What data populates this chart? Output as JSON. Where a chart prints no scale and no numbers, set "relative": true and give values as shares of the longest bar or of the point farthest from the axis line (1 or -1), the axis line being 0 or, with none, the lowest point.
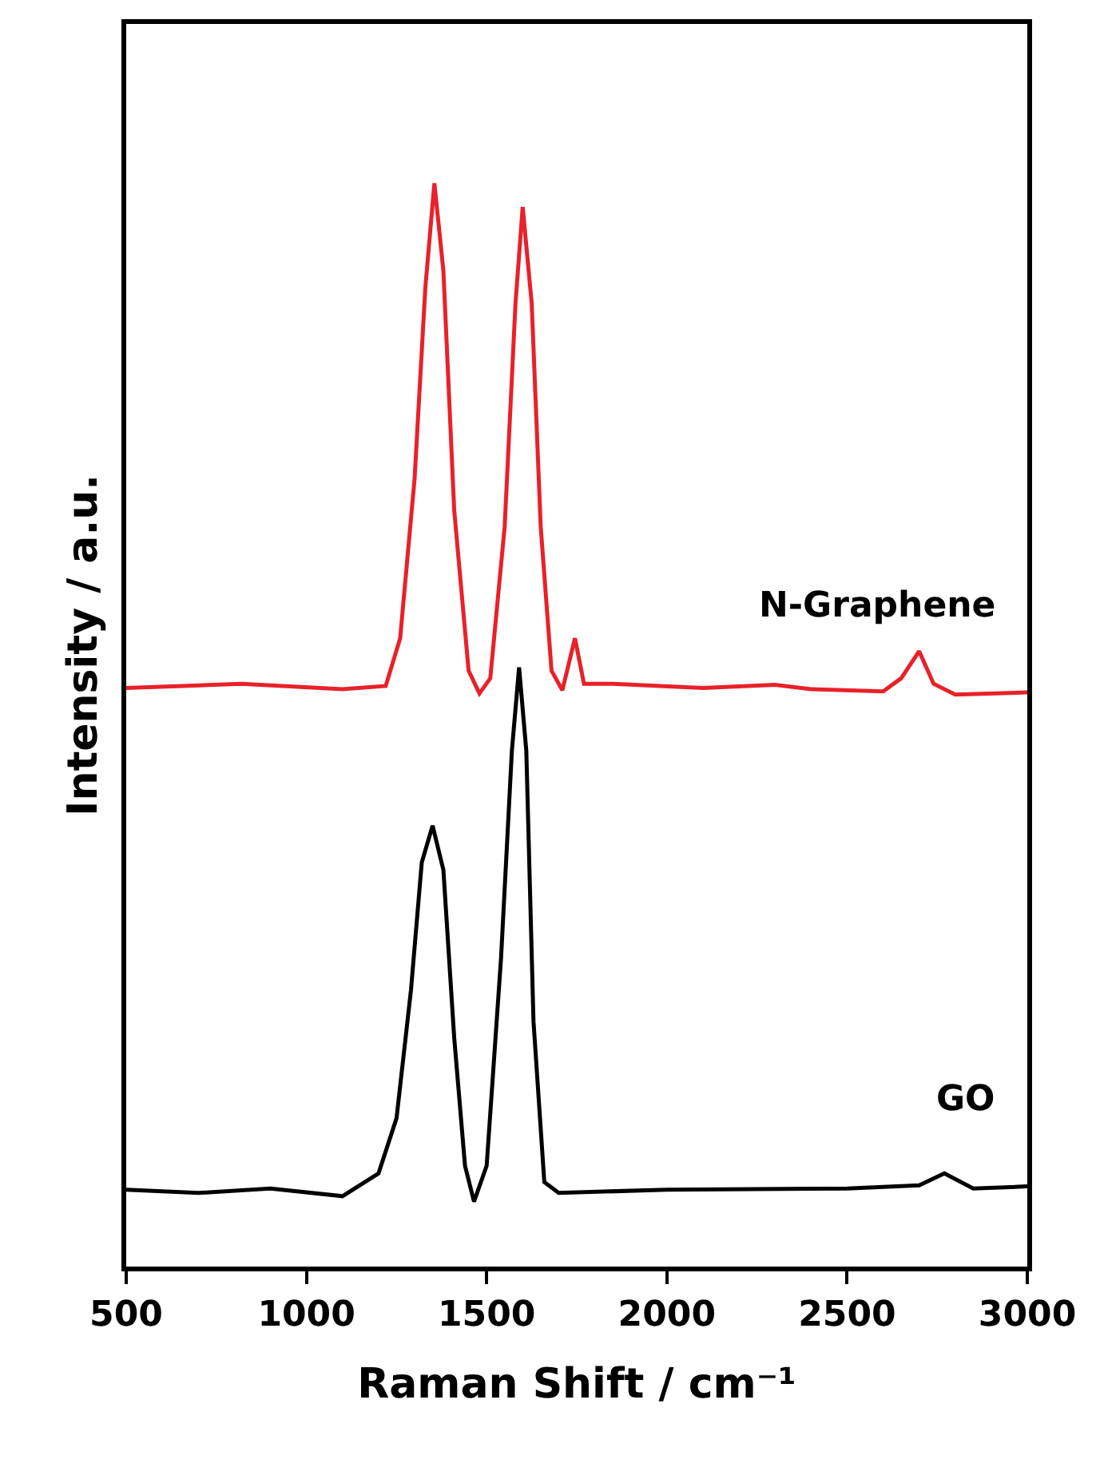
{
  "chart_data": {
    "type": "line",
    "xlabel": "Raman Shift / cm⁻¹",
    "ylabel": "Intensity / a.u.",
    "relative": true,
    "xlim": [
      500,
      3000
    ],
    "xticks": [
      500,
      1000,
      1500,
      2000,
      2500,
      3000
    ],
    "grid": false,
    "legend": false,
    "marker": "none",
    "line_style": "solid",
    "series": [
      {
        "name": "N-Graphene",
        "color": "#e8212a",
        "x": [
          500,
          820,
          1100,
          1220,
          1260,
          1300,
          1330,
          1355,
          1380,
          1410,
          1450,
          1480,
          1510,
          1550,
          1580,
          1600,
          1625,
          1650,
          1680,
          1710,
          1745,
          1770,
          1850,
          2100,
          2300,
          2400,
          2600,
          2650,
          2700,
          2740,
          2800,
          3000
        ],
        "values": [
          0.534,
          0.538,
          0.533,
          0.536,
          0.58,
          0.727,
          0.904,
          1.0,
          0.919,
          0.698,
          0.55,
          0.529,
          0.543,
          0.683,
          0.889,
          0.978,
          0.889,
          0.683,
          0.55,
          0.532,
          0.58,
          0.538,
          0.538,
          0.534,
          0.537,
          0.533,
          0.531,
          0.543,
          0.568,
          0.538,
          0.528,
          0.53
        ]
      },
      {
        "name": "GO",
        "color": "#000000",
        "x": [
          500,
          700,
          900,
          1100,
          1200,
          1250,
          1290,
          1320,
          1350,
          1380,
          1410,
          1440,
          1465,
          1500,
          1540,
          1570,
          1590,
          1610,
          1630,
          1660,
          1700,
          2000,
          2500,
          2700,
          2770,
          2850,
          3000
        ],
        "values": [
          0.071,
          0.068,
          0.072,
          0.065,
          0.086,
          0.137,
          0.255,
          0.373,
          0.407,
          0.366,
          0.211,
          0.093,
          0.06,
          0.093,
          0.285,
          0.476,
          0.553,
          0.476,
          0.226,
          0.078,
          0.068,
          0.071,
          0.072,
          0.075,
          0.086,
          0.072,
          0.074
        ]
      }
    ]
  }
}
